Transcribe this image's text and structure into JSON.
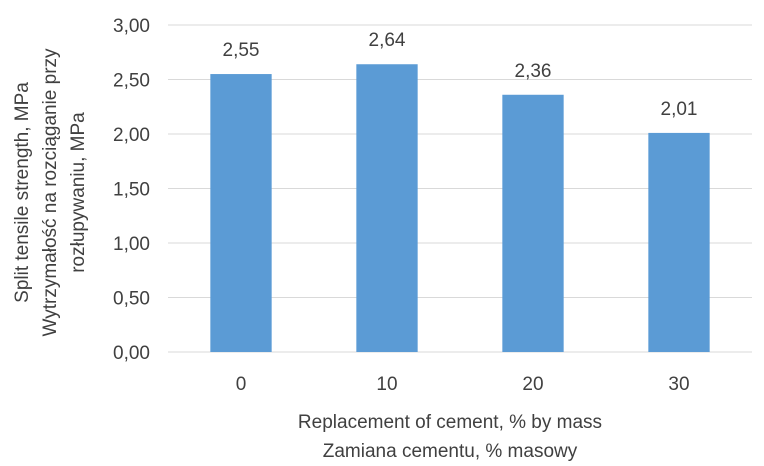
{
  "chart_data": {
    "type": "bar",
    "categories": [
      "0",
      "10",
      "20",
      "30"
    ],
    "values": [
      2.55,
      2.64,
      2.36,
      2.01
    ],
    "value_labels": [
      "2,55",
      "2,64",
      "2,36",
      "2,01"
    ],
    "ylim": [
      0,
      3
    ],
    "y_ticks": [
      0,
      0.5,
      1,
      1.5,
      2,
      2.5,
      3
    ],
    "y_tick_labels": [
      "0,00",
      "0,50",
      "1,00",
      "1,50",
      "2,00",
      "2,50",
      "3,00"
    ],
    "xlabel_lines": [
      "Replacement of cement, % by mass",
      "Zamiana cementu, % masowy"
    ],
    "ylabel_lines": [
      "Split tensile strength, MPa",
      "Wytrzymałość na rozciąganie przy",
      "rozłupywaniu, MPa"
    ],
    "grid": true,
    "legend": "none",
    "bar_color": "#5b9bd5",
    "grid_color": "#d9d9d9",
    "text_color": "#404040"
  }
}
